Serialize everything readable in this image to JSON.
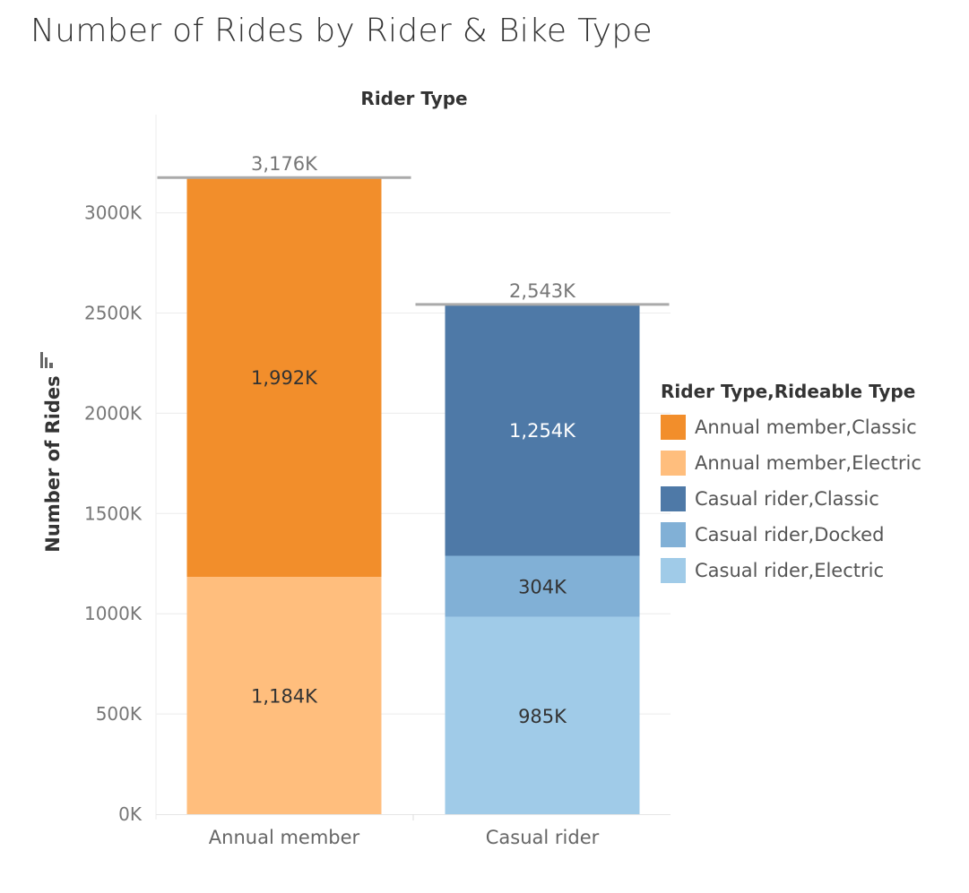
{
  "chart_data": {
    "type": "bar",
    "stacked": true,
    "title": "Number of Rides by Rider & Bike Type",
    "column_header": "Rider Type",
    "ylabel": "Number of Rides",
    "y_unit": "thousands of rides",
    "ylim": [
      0,
      3300
    ],
    "yticks": [
      0,
      500,
      1000,
      1500,
      2000,
      2500,
      3000
    ],
    "ytick_labels": [
      "0K",
      "500K",
      "1000K",
      "1500K",
      "2000K",
      "2500K",
      "3000K"
    ],
    "categories": [
      "Annual member",
      "Casual rider"
    ],
    "totals": [
      3176,
      2543
    ],
    "total_labels": [
      "3,176K",
      "2,543K"
    ],
    "grid": true,
    "legend_title": "Rider Type,Rideable Type",
    "legend_position": "right",
    "series": [
      {
        "name": "Annual member,Electric",
        "category": "Annual member",
        "value": 1184,
        "label": "1,184K",
        "color": "#ffbe7d",
        "label_color": "#333333"
      },
      {
        "name": "Annual member,Classic",
        "category": "Annual member",
        "value": 1992,
        "label": "1,992K",
        "color": "#f28e2b",
        "label_color": "#333333"
      },
      {
        "name": "Casual rider,Electric",
        "category": "Casual rider",
        "value": 985,
        "label": "985K",
        "color": "#a0cbe8",
        "label_color": "#333333"
      },
      {
        "name": "Casual rider,Docked",
        "category": "Casual rider",
        "value": 304,
        "label": "304K",
        "color": "#81b0d6",
        "label_color": "#333333"
      },
      {
        "name": "Casual rider,Classic",
        "category": "Casual rider",
        "value": 1254,
        "label": "1,254K",
        "color": "#4e79a7",
        "label_color": "#ffffff"
      }
    ],
    "legend_entries": [
      {
        "name": "Annual member,Classic",
        "color": "#f28e2b"
      },
      {
        "name": "Annual member,Electric",
        "color": "#ffbe7d"
      },
      {
        "name": "Casual rider,Classic",
        "color": "#4e79a7"
      },
      {
        "name": "Casual rider,Docked",
        "color": "#81b0d6"
      },
      {
        "name": "Casual rider,Electric",
        "color": "#a0cbe8"
      }
    ]
  }
}
